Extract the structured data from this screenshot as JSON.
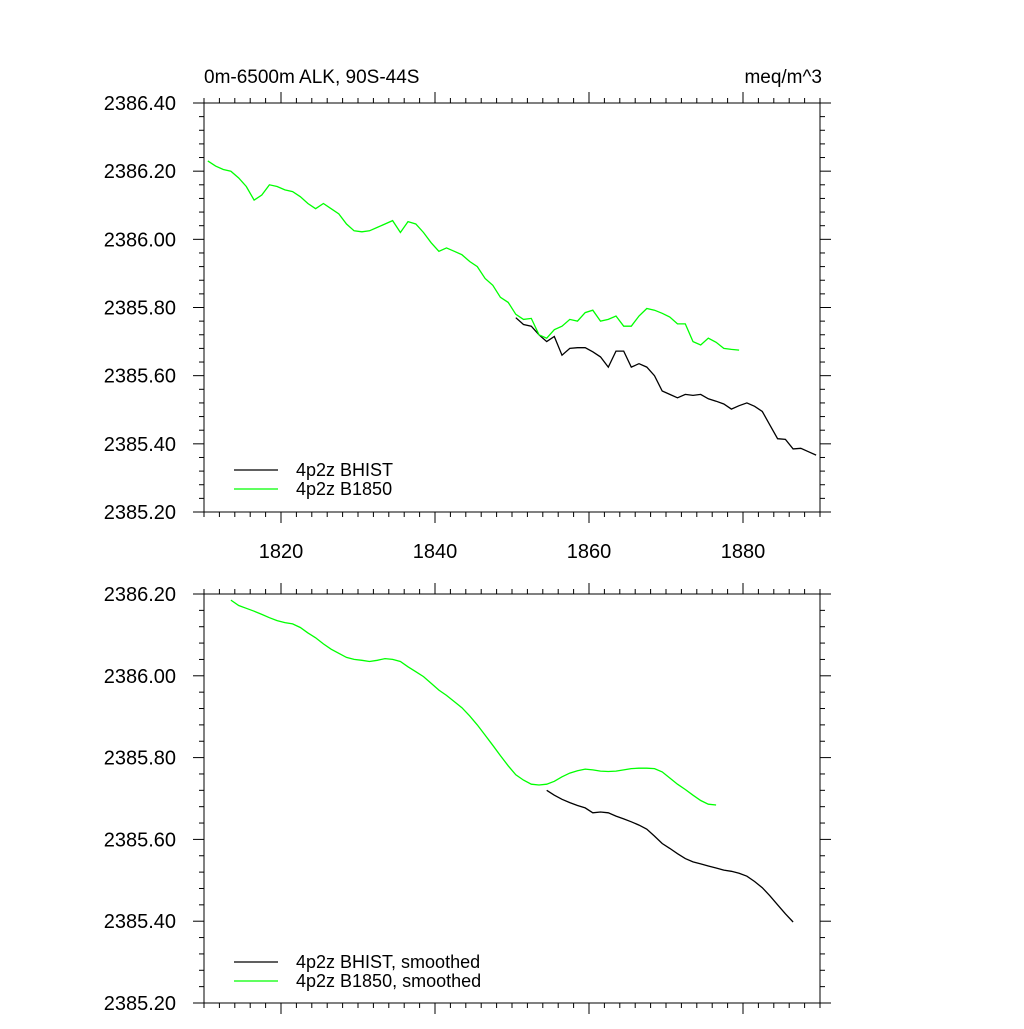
{
  "chart_data": [
    {
      "type": "line",
      "title_left": "0m-6500m ALK, 90S-44S",
      "title_right": "meq/m^3",
      "xlabel": "",
      "ylabel": "",
      "xlim": [
        1810,
        1890
      ],
      "ylim": [
        2385.2,
        2386.4
      ],
      "xticks": [
        1820,
        1840,
        1860,
        1880
      ],
      "xtick_labels": [
        "1820",
        "1840",
        "1860",
        "1880"
      ],
      "yticks": [
        2385.2,
        2385.4,
        2385.6,
        2385.8,
        2386.0,
        2386.2,
        2386.4
      ],
      "ytick_labels": [
        "2385.20",
        "2385.40",
        "2385.60",
        "2385.80",
        "2386.00",
        "2386.20",
        "2386.40"
      ],
      "legend_position": "bottom-left",
      "series": [
        {
          "name": "4p2z BHIST",
          "color": "#000000",
          "x": [
            1850.5,
            1851.5,
            1852.5,
            1853.5,
            1854.5,
            1855.5,
            1856.5,
            1857.5,
            1858.5,
            1859.5,
            1860.5,
            1861.5,
            1862.5,
            1863.5,
            1864.5,
            1865.5,
            1866.5,
            1867.5,
            1868.5,
            1869.5,
            1870.5,
            1871.5,
            1872.5,
            1873.5,
            1874.5,
            1875.5,
            1876.5,
            1877.5,
            1878.5,
            1879.5,
            1880.5,
            1881.5,
            1882.5,
            1883.5,
            1884.5,
            1885.5,
            1886.5,
            1887.5,
            1888.5,
            1889.5
          ],
          "y": [
            2385.77,
            2385.75,
            2385.745,
            2385.72,
            2385.7,
            2385.715,
            2385.66,
            2385.68,
            2385.682,
            2385.682,
            2385.67,
            2385.655,
            2385.625,
            2385.672,
            2385.672,
            2385.625,
            2385.635,
            2385.625,
            2385.6,
            2385.555,
            2385.545,
            2385.535,
            2385.545,
            2385.542,
            2385.545,
            2385.532,
            2385.525,
            2385.517,
            2385.502,
            2385.512,
            2385.52,
            2385.51,
            2385.495,
            2385.455,
            2385.415,
            2385.413,
            2385.385,
            2385.387,
            2385.377,
            2385.367
          ]
        },
        {
          "name": "4p2z B1850",
          "color": "#00ff00",
          "x": [
            1810.5,
            1811.5,
            1812.5,
            1813.5,
            1814.5,
            1815.5,
            1816.5,
            1817.5,
            1818.5,
            1819.5,
            1820.5,
            1821.5,
            1822.5,
            1823.5,
            1824.5,
            1825.5,
            1826.5,
            1827.5,
            1828.5,
            1829.5,
            1830.5,
            1831.5,
            1832.5,
            1833.5,
            1834.5,
            1835.5,
            1836.5,
            1837.5,
            1838.5,
            1839.5,
            1840.5,
            1841.5,
            1842.5,
            1843.5,
            1844.5,
            1845.5,
            1846.5,
            1847.5,
            1848.5,
            1849.5,
            1850.5,
            1851.5,
            1852.5,
            1853.5,
            1854.5,
            1855.5,
            1856.5,
            1857.5,
            1858.5,
            1859.5,
            1860.5,
            1861.5,
            1862.5,
            1863.5,
            1864.5,
            1865.5,
            1866.5,
            1867.5,
            1868.5,
            1869.5,
            1870.5,
            1871.5,
            1872.5,
            1873.5,
            1874.5,
            1875.5,
            1876.5,
            1877.5,
            1878.5,
            1879.5
          ],
          "y": [
            2386.23,
            2386.215,
            2386.205,
            2386.2,
            2386.18,
            2386.155,
            2386.115,
            2386.13,
            2386.16,
            2386.155,
            2386.145,
            2386.14,
            2386.125,
            2386.105,
            2386.09,
            2386.105,
            2386.09,
            2386.075,
            2386.045,
            2386.025,
            2386.022,
            2386.025,
            2386.035,
            2386.045,
            2386.055,
            2386.02,
            2386.052,
            2386.045,
            2386.02,
            2385.99,
            2385.965,
            2385.975,
            2385.965,
            2385.955,
            2385.935,
            2385.92,
            2385.885,
            2385.865,
            2385.83,
            2385.815,
            2385.78,
            2385.765,
            2385.768,
            2385.72,
            2385.71,
            2385.735,
            2385.745,
            2385.765,
            2385.76,
            2385.785,
            2385.792,
            2385.76,
            2385.765,
            2385.775,
            2385.745,
            2385.745,
            2385.775,
            2385.797,
            2385.792,
            2385.783,
            2385.772,
            2385.752,
            2385.752,
            2385.7,
            2385.69,
            2385.71,
            2385.698,
            2385.68,
            2385.677,
            2385.675
          ]
        }
      ]
    },
    {
      "type": "line",
      "xlabel": "",
      "ylabel": "",
      "xlim": [
        1810,
        1890
      ],
      "ylim": [
        2385.2,
        2386.2
      ],
      "xticks": [
        1820,
        1840,
        1860,
        1880
      ],
      "yticks": [
        2385.2,
        2385.4,
        2385.6,
        2385.8,
        2386.0,
        2386.2
      ],
      "ytick_labels": [
        "2385.20",
        "2385.40",
        "2385.60",
        "2385.80",
        "2386.00",
        "2386.20"
      ],
      "legend_position": "bottom-left",
      "series": [
        {
          "name": "4p2z BHIST, smoothed",
          "color": "#000000",
          "x": [
            1854.5,
            1855.5,
            1856.5,
            1857.5,
            1858.5,
            1859.5,
            1860.5,
            1861.5,
            1862.5,
            1863.5,
            1864.5,
            1865.5,
            1866.5,
            1867.5,
            1868.5,
            1869.5,
            1870.5,
            1871.5,
            1872.5,
            1873.5,
            1874.5,
            1875.5,
            1876.5,
            1877.5,
            1878.5,
            1879.5,
            1880.5,
            1881.5,
            1882.5,
            1883.5,
            1884.5,
            1885.5,
            1886.5
          ],
          "y": [
            2385.72,
            2385.708,
            2385.698,
            2385.69,
            2385.683,
            2385.677,
            2385.665,
            2385.667,
            2385.665,
            2385.657,
            2385.65,
            2385.643,
            2385.635,
            2385.625,
            2385.608,
            2385.59,
            2385.578,
            2385.565,
            2385.553,
            2385.545,
            2385.54,
            2385.535,
            2385.53,
            2385.525,
            2385.522,
            2385.517,
            2385.51,
            2385.497,
            2385.482,
            2385.462,
            2385.44,
            2385.418,
            2385.398
          ]
        },
        {
          "name": "4p2z B1850, smoothed",
          "color": "#00ff00",
          "x": [
            1813.5,
            1814.5,
            1815.5,
            1816.5,
            1817.5,
            1818.5,
            1819.5,
            1820.5,
            1821.5,
            1822.5,
            1823.5,
            1824.5,
            1825.5,
            1826.5,
            1827.5,
            1828.5,
            1829.5,
            1830.5,
            1831.5,
            1832.5,
            1833.5,
            1834.5,
            1835.5,
            1836.5,
            1837.5,
            1838.5,
            1839.5,
            1840.5,
            1841.5,
            1842.5,
            1843.5,
            1844.5,
            1845.5,
            1846.5,
            1847.5,
            1848.5,
            1849.5,
            1850.5,
            1851.5,
            1852.5,
            1853.5,
            1854.5,
            1855.5,
            1856.5,
            1857.5,
            1858.5,
            1859.5,
            1860.5,
            1861.5,
            1862.5,
            1863.5,
            1864.5,
            1865.5,
            1866.5,
            1867.5,
            1868.5,
            1869.5,
            1870.5,
            1871.5,
            1872.5,
            1873.5,
            1874.5,
            1875.5,
            1876.5
          ],
          "y": [
            2386.185,
            2386.172,
            2386.165,
            2386.158,
            2386.15,
            2386.142,
            2386.135,
            2386.13,
            2386.127,
            2386.118,
            2386.105,
            2386.093,
            2386.078,
            2386.065,
            2386.055,
            2386.045,
            2386.04,
            2386.038,
            2386.035,
            2386.038,
            2386.042,
            2386.04,
            2386.035,
            2386.022,
            2386.01,
            2385.998,
            2385.982,
            2385.965,
            2385.952,
            2385.937,
            2385.922,
            2385.902,
            2385.88,
            2385.855,
            2385.83,
            2385.805,
            2385.78,
            2385.758,
            2385.745,
            2385.735,
            2385.733,
            2385.735,
            2385.742,
            2385.753,
            2385.762,
            2385.768,
            2385.772,
            2385.77,
            2385.767,
            2385.766,
            2385.767,
            2385.77,
            2385.773,
            2385.774,
            2385.774,
            2385.773,
            2385.765,
            2385.75,
            2385.735,
            2385.722,
            2385.708,
            2385.695,
            2385.686,
            2385.684
          ]
        }
      ]
    }
  ]
}
